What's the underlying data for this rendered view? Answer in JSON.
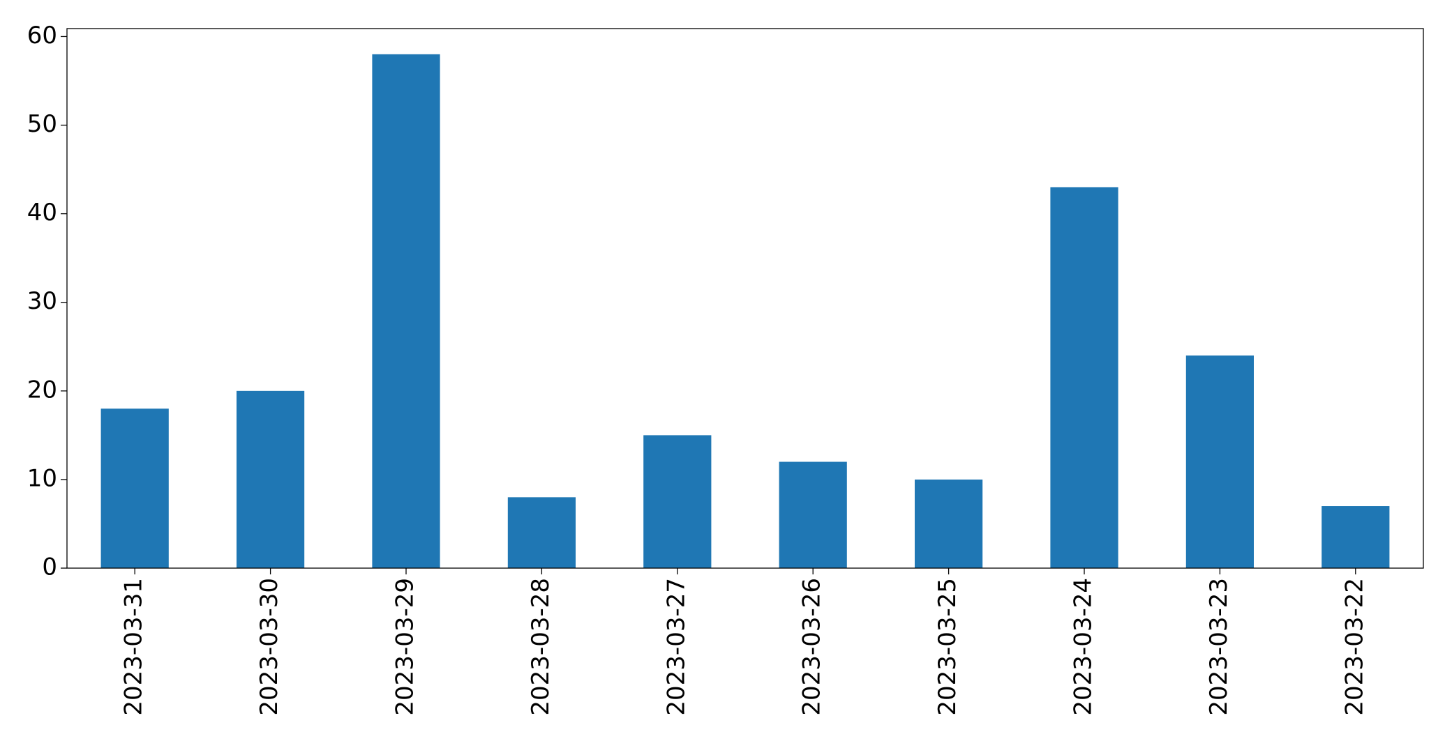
{
  "chart_data": {
    "type": "bar",
    "categories": [
      "2023-03-31",
      "2023-03-30",
      "2023-03-29",
      "2023-03-28",
      "2023-03-27",
      "2023-03-26",
      "2023-03-25",
      "2023-03-24",
      "2023-03-23",
      "2023-03-22"
    ],
    "values": [
      18,
      20,
      58,
      8,
      15,
      12,
      10,
      43,
      24,
      7
    ],
    "color": "#1f77b4",
    "ylim": [
      0,
      60.9
    ],
    "yticks": [
      0,
      10,
      20,
      30,
      40,
      50,
      60
    ],
    "grid": false
  }
}
